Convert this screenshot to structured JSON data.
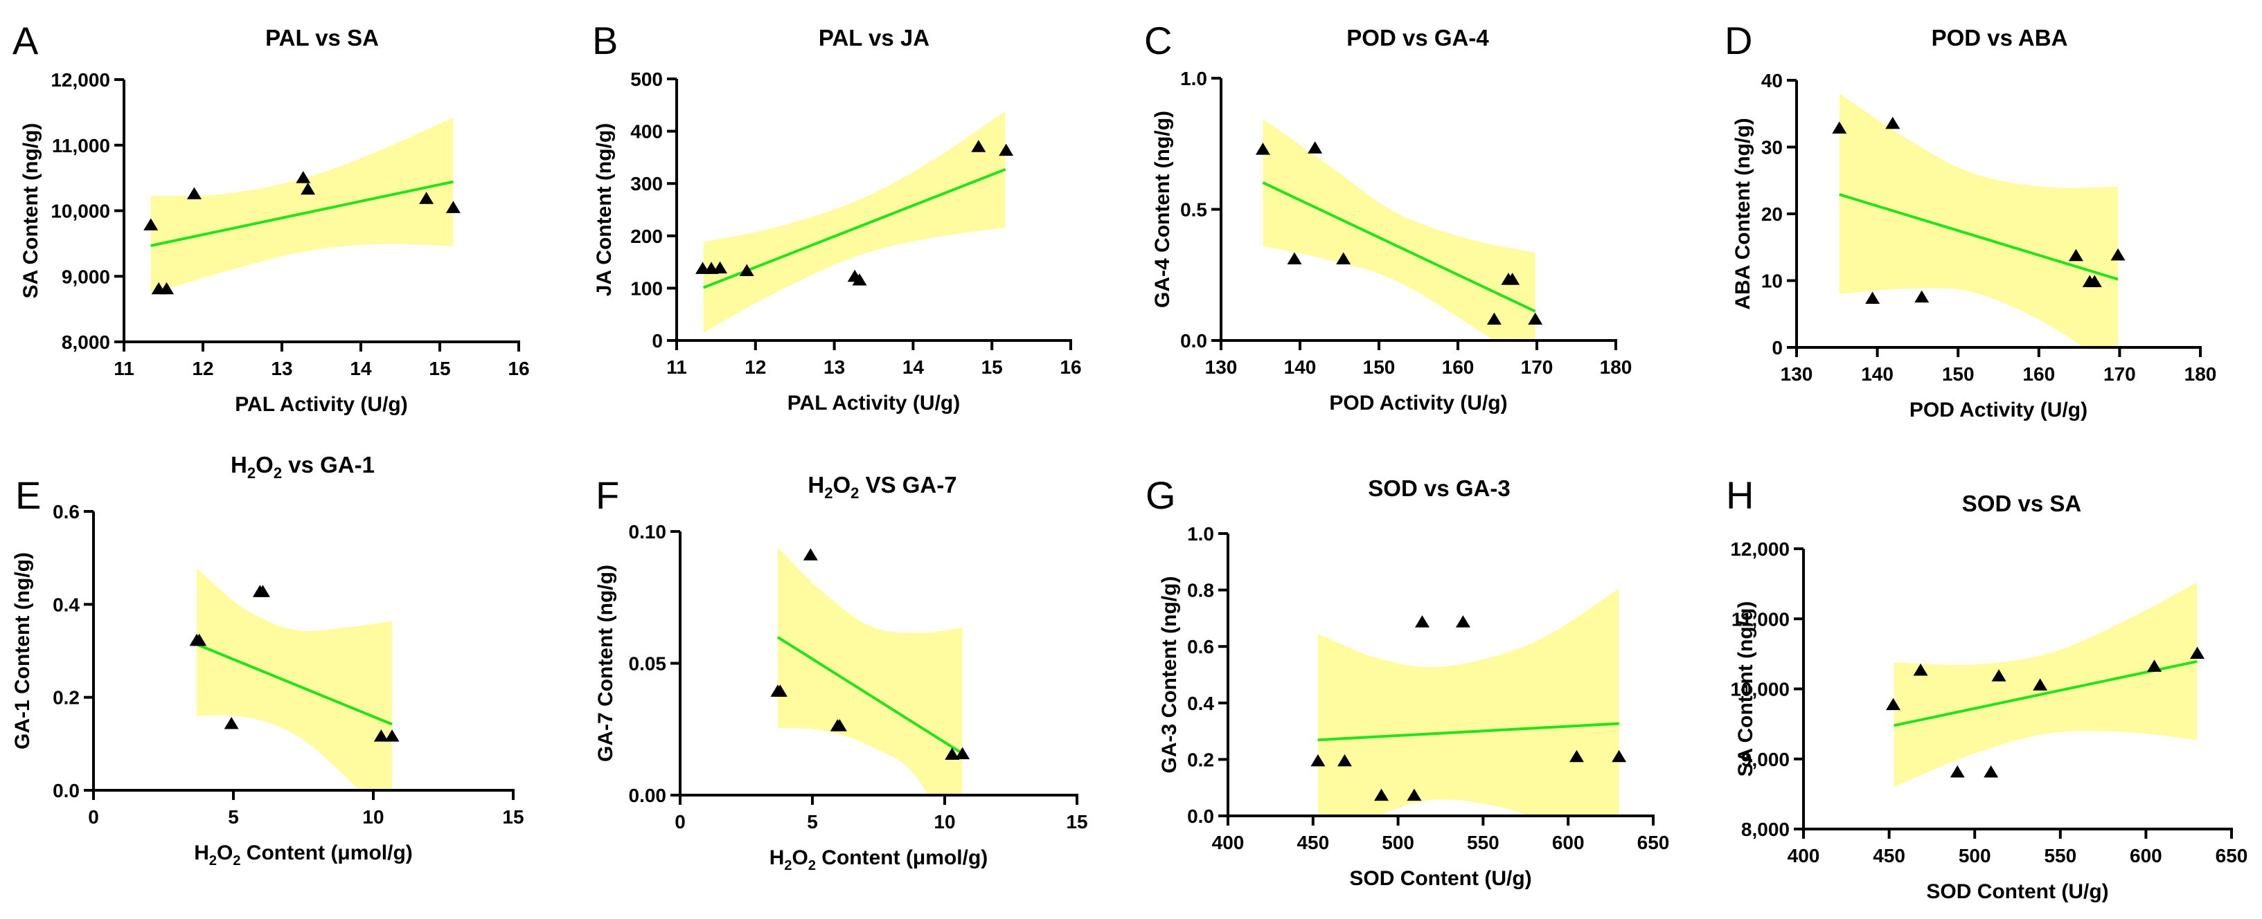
{
  "figure": {
    "colors": {
      "band": "#FFFCA0",
      "fit_line": "#22E31C",
      "point": "#000000",
      "axis": "#000000"
    },
    "marker": "triangle-up"
  },
  "chart_data": [
    {
      "id": "A",
      "letter": "A",
      "type": "scatter",
      "title": "PAL vs SA",
      "title_parts": [
        [
          "PAL vs SA",
          false
        ]
      ],
      "xlabel": "PAL Activity (U/g)",
      "xlabel_parts": [
        [
          "PAL Activity (U/g)",
          false
        ]
      ],
      "ylabel": "SA Content (ng/g)",
      "xlim": [
        11,
        16
      ],
      "ylim": [
        8000,
        12000
      ],
      "xticks": [
        11,
        12,
        13,
        14,
        15,
        16
      ],
      "xtick_labels": [
        "11",
        "12",
        "13",
        "14",
        "15",
        "16"
      ],
      "yticks": [
        8000,
        9000,
        10000,
        11000,
        12000
      ],
      "ytick_labels": [
        "8,000",
        "9,000",
        "10,000",
        "11,000",
        "12,000"
      ],
      "points": [
        [
          11.34,
          9780
        ],
        [
          11.44,
          8805
        ],
        [
          11.54,
          8805
        ],
        [
          11.89,
          10255
        ],
        [
          13.27,
          10500
        ],
        [
          13.33,
          10325
        ],
        [
          14.83,
          10182
        ],
        [
          15.17,
          10043
        ]
      ],
      "fit": {
        "x": [
          11.34,
          15.17
        ],
        "y": [
          9467,
          10442
        ]
      },
      "band": {
        "x": [
          11.34,
          12.3,
          13.3,
          14.2,
          15.17
        ],
        "upper": [
          10225,
          10260,
          10500,
          10900,
          11420
        ],
        "lower": [
          8730,
          9080,
          9380,
          9490,
          9460
        ]
      },
      "grid": false,
      "legend": "none"
    },
    {
      "id": "B",
      "letter": "B",
      "type": "scatter",
      "title": "PAL vs JA",
      "title_parts": [
        [
          "PAL vs JA",
          false
        ]
      ],
      "xlabel": "PAL Activity (U/g)",
      "xlabel_parts": [
        [
          "PAL Activity (U/g)",
          false
        ]
      ],
      "ylabel": "JA Content (ng/g)",
      "xlim": [
        11,
        16
      ],
      "ylim": [
        0,
        500
      ],
      "xticks": [
        11,
        12,
        13,
        14,
        15,
        16
      ],
      "xtick_labels": [
        "11",
        "12",
        "13",
        "14",
        "15",
        "16"
      ],
      "yticks": [
        0,
        100,
        200,
        300,
        400,
        500
      ],
      "ytick_labels": [
        "0",
        "100",
        "200",
        "300",
        "400",
        "500"
      ],
      "points": [
        [
          11.33,
          137
        ],
        [
          11.44,
          137
        ],
        [
          11.55,
          138
        ],
        [
          11.89,
          133
        ],
        [
          13.26,
          122
        ],
        [
          13.32,
          115
        ],
        [
          14.83,
          370
        ],
        [
          15.18,
          363
        ]
      ],
      "fit": {
        "x": [
          11.34,
          15.17
        ],
        "y": [
          101,
          327
        ]
      },
      "band": {
        "x": [
          11.34,
          12.3,
          13.3,
          14.2,
          15.17
        ],
        "upper": [
          188,
          218,
          268,
          340,
          438
        ],
        "lower": [
          15,
          95,
          162,
          195,
          216
        ]
      },
      "grid": false,
      "legend": "none"
    },
    {
      "id": "C",
      "letter": "C",
      "type": "scatter",
      "title": "POD vs GA-4",
      "title_parts": [
        [
          "POD vs GA-4",
          false
        ]
      ],
      "xlabel": "POD Activity (U/g)",
      "xlabel_parts": [
        [
          "POD Activity (U/g)",
          false
        ]
      ],
      "ylabel": "GA-4 Content (ng/g)",
      "xlim": [
        130,
        180
      ],
      "ylim": [
        0,
        1.0
      ],
      "xticks": [
        130,
        140,
        150,
        160,
        170,
        180
      ],
      "xtick_labels": [
        "130",
        "140",
        "150",
        "160",
        "170",
        "180"
      ],
      "yticks": [
        0,
        0.5,
        1.0
      ],
      "ytick_labels": [
        "0.0",
        "0.5",
        "1.0"
      ],
      "points": [
        [
          135.3,
          0.728
        ],
        [
          139.3,
          0.31
        ],
        [
          141.9,
          0.733
        ],
        [
          145.5,
          0.31
        ],
        [
          164.6,
          0.08
        ],
        [
          166.4,
          0.232
        ],
        [
          166.9,
          0.232
        ],
        [
          169.8,
          0.08
        ]
      ],
      "fit": {
        "x": [
          135.3,
          169.8
        ],
        "y": [
          0.602,
          0.111
        ]
      },
      "band": {
        "x": [
          135.3,
          144,
          152,
          161,
          169.8
        ],
        "upper": [
          0.845,
          0.66,
          0.49,
          0.39,
          0.335
        ],
        "lower": [
          0.36,
          0.305,
          0.23,
          0.07,
          -0.11
        ]
      },
      "grid": false,
      "legend": "none"
    },
    {
      "id": "D",
      "letter": "D",
      "type": "scatter",
      "title": "POD vs ABA",
      "title_parts": [
        [
          "POD vs ABA",
          false
        ]
      ],
      "xlabel": "POD Activity (U/g)",
      "xlabel_parts": [
        [
          "POD Activity (U/g)",
          false
        ]
      ],
      "ylabel": "ABA Content (ng/g)",
      "xlim": [
        130,
        180
      ],
      "ylim": [
        0,
        40
      ],
      "xticks": [
        130,
        140,
        150,
        160,
        170,
        180
      ],
      "xtick_labels": [
        "130",
        "140",
        "150",
        "160",
        "170",
        "180"
      ],
      "yticks": [
        0,
        10,
        20,
        30,
        40
      ],
      "ytick_labels": [
        "0",
        "10",
        "20",
        "30",
        "40"
      ],
      "points": [
        [
          135.3,
          32.8
        ],
        [
          139.4,
          7.3
        ],
        [
          141.9,
          33.5
        ],
        [
          145.5,
          7.5
        ],
        [
          164.6,
          13.7
        ],
        [
          166.3,
          9.8
        ],
        [
          166.9,
          9.8
        ],
        [
          169.8,
          13.8
        ]
      ],
      "fit": {
        "x": [
          135.3,
          169.8
        ],
        "y": [
          22.9,
          10.2
        ]
      },
      "band": {
        "x": [
          135.3,
          144,
          152,
          161,
          169.8
        ],
        "upper": [
          38.0,
          31.0,
          26.0,
          24.0,
          24.1
        ],
        "lower": [
          8.0,
          8.8,
          8.2,
          3.5,
          -3.6
        ]
      },
      "grid": false,
      "legend": "none"
    },
    {
      "id": "E",
      "letter": "E",
      "type": "scatter",
      "title": "H2O2 vs GA-1",
      "title_parts": [
        [
          "H",
          false
        ],
        [
          "2",
          true
        ],
        [
          "O",
          false
        ],
        [
          "2",
          true
        ],
        [
          " vs GA-1",
          false
        ]
      ],
      "xlabel": "H2O2 Content (μmol/g)",
      "xlabel_parts": [
        [
          "H",
          false
        ],
        [
          "2",
          true
        ],
        [
          "O",
          false
        ],
        [
          "2",
          true
        ],
        [
          " Content (μmol/g)",
          false
        ]
      ],
      "ylabel": "GA-1 Content (ng/g)",
      "xlim": [
        0,
        15
      ],
      "ylim": [
        0,
        0.6
      ],
      "xticks": [
        0,
        5,
        10,
        15
      ],
      "xtick_labels": [
        "0",
        "5",
        "10",
        "15"
      ],
      "yticks": [
        0,
        0.2,
        0.4,
        0.6
      ],
      "ytick_labels": [
        "0.0",
        "0.2",
        "0.4",
        "0.6"
      ],
      "points": [
        [
          3.69,
          0.322
        ],
        [
          3.78,
          0.322
        ],
        [
          4.93,
          0.143
        ],
        [
          5.95,
          0.427
        ],
        [
          6.05,
          0.427
        ],
        [
          10.28,
          0.116
        ],
        [
          10.67,
          0.116
        ]
      ],
      "fit": {
        "x": [
          3.69,
          10.67
        ],
        "y": [
          0.314,
          0.142
        ]
      },
      "band": {
        "x": [
          3.69,
          5.4,
          7.2,
          9.0,
          10.67
        ],
        "upper": [
          0.478,
          0.39,
          0.345,
          0.35,
          0.364
        ],
        "lower": [
          0.16,
          0.158,
          0.12,
          0.03,
          -0.08
        ]
      },
      "grid": false,
      "legend": "none"
    },
    {
      "id": "F",
      "letter": "F",
      "type": "scatter",
      "title": "H2O2 VS GA-7",
      "title_parts": [
        [
          "H",
          false
        ],
        [
          "2",
          true
        ],
        [
          "O",
          false
        ],
        [
          "2",
          true
        ],
        [
          " VS GA-7",
          false
        ]
      ],
      "xlabel": "H2O2 Content (μmol/g)",
      "xlabel_parts": [
        [
          "H",
          false
        ],
        [
          "2",
          true
        ],
        [
          "O",
          false
        ],
        [
          "2",
          true
        ],
        [
          " Content (μmol/g)",
          false
        ]
      ],
      "ylabel": "GA-7 Content (ng/g)",
      "xlim": [
        0,
        15
      ],
      "ylim": [
        0,
        0.1
      ],
      "xticks": [
        0,
        5,
        10,
        15
      ],
      "xtick_labels": [
        "0",
        "5",
        "10",
        "15"
      ],
      "yticks": [
        0,
        0.05,
        0.1
      ],
      "ytick_labels": [
        "0.00",
        "0.05",
        "0.10"
      ],
      "points": [
        [
          3.69,
          0.0393
        ],
        [
          3.78,
          0.0393
        ],
        [
          4.93,
          0.091
        ],
        [
          5.95,
          0.0262
        ],
        [
          6.03,
          0.0262
        ],
        [
          10.28,
          0.0154
        ],
        [
          10.67,
          0.0156
        ]
      ],
      "fit": {
        "x": [
          3.69,
          10.67
        ],
        "y": [
          0.0599,
          0.0158
        ]
      },
      "band": {
        "x": [
          3.69,
          5.4,
          7.2,
          9.0,
          10.67
        ],
        "upper": [
          0.094,
          0.077,
          0.064,
          0.0615,
          0.0635
        ],
        "lower": [
          0.0255,
          0.0245,
          0.0185,
          0.006,
          -0.031
        ]
      },
      "grid": false,
      "legend": "none"
    },
    {
      "id": "G",
      "letter": "G",
      "type": "scatter",
      "title": "SOD vs GA-3",
      "title_parts": [
        [
          "SOD vs GA-3",
          false
        ]
      ],
      "xlabel": "SOD Content (U/g)",
      "xlabel_parts": [
        [
          "SOD Content (U/g)",
          false
        ]
      ],
      "ylabel": "GA-3 Content (ng/g)",
      "xlim": [
        400,
        650
      ],
      "ylim": [
        0,
        1.0
      ],
      "xticks": [
        400,
        450,
        500,
        550,
        600,
        650
      ],
      "xtick_labels": [
        "400",
        "450",
        "500",
        "550",
        "600",
        "650"
      ],
      "yticks": [
        0,
        0.2,
        0.4,
        0.6,
        0.8,
        1.0
      ],
      "ytick_labels": [
        "0.0",
        "0.2",
        "0.4",
        "0.6",
        "0.8",
        "1.0"
      ],
      "points": [
        [
          452.9,
          0.194
        ],
        [
          468.6,
          0.194
        ],
        [
          490.2,
          0.072
        ],
        [
          509.5,
          0.072
        ],
        [
          514.2,
          0.686
        ],
        [
          538.2,
          0.686
        ],
        [
          605.0,
          0.209
        ],
        [
          629.9,
          0.209
        ]
      ],
      "fit": {
        "x": [
          452.9,
          629.9
        ],
        "y": [
          0.269,
          0.327
        ]
      },
      "band": {
        "x": [
          452.9,
          490,
          528,
          580,
          629.9
        ],
        "upper": [
          0.645,
          0.555,
          0.53,
          0.615,
          0.805
        ],
        "lower": [
          -0.11,
          0.005,
          0.058,
          -0.005,
          -0.16
        ]
      },
      "grid": false,
      "legend": "none"
    },
    {
      "id": "H",
      "letter": "H",
      "type": "scatter",
      "title": "SOD vs SA",
      "title_parts": [
        [
          "SOD vs SA",
          false
        ]
      ],
      "xlabel": "SOD Content (U/g)",
      "xlabel_parts": [
        [
          "SOD Content (U/g)",
          false
        ]
      ],
      "ylabel": "SA Content (ng/g)",
      "xlim": [
        400,
        650
      ],
      "ylim": [
        8000,
        12000
      ],
      "xticks": [
        400,
        450,
        500,
        550,
        600,
        650
      ],
      "xtick_labels": [
        "400",
        "450",
        "500",
        "550",
        "600",
        "650"
      ],
      "yticks": [
        8000,
        9000,
        10000,
        11000,
        12000
      ],
      "ytick_labels": [
        "8,000",
        "9,000",
        "10,000",
        "11,000",
        "12,000"
      ],
      "points": [
        [
          452.4,
          9772
        ],
        [
          468.4,
          10263
        ],
        [
          489.9,
          8810
        ],
        [
          509.5,
          8810
        ],
        [
          514.1,
          10181
        ],
        [
          538.2,
          10052
        ],
        [
          604.9,
          10319
        ],
        [
          630.0,
          10504
        ]
      ],
      "fit": {
        "x": [
          452.9,
          629.9
        ],
        "y": [
          9478,
          10392
        ]
      },
      "band": {
        "x": [
          452.9,
          500,
          545,
          590,
          629.9
        ],
        "upper": [
          10380,
          10350,
          10520,
          11000,
          11520
        ],
        "lower": [
          8600,
          9080,
          9370,
          9380,
          9270
        ]
      },
      "grid": false,
      "legend": "none"
    }
  ]
}
